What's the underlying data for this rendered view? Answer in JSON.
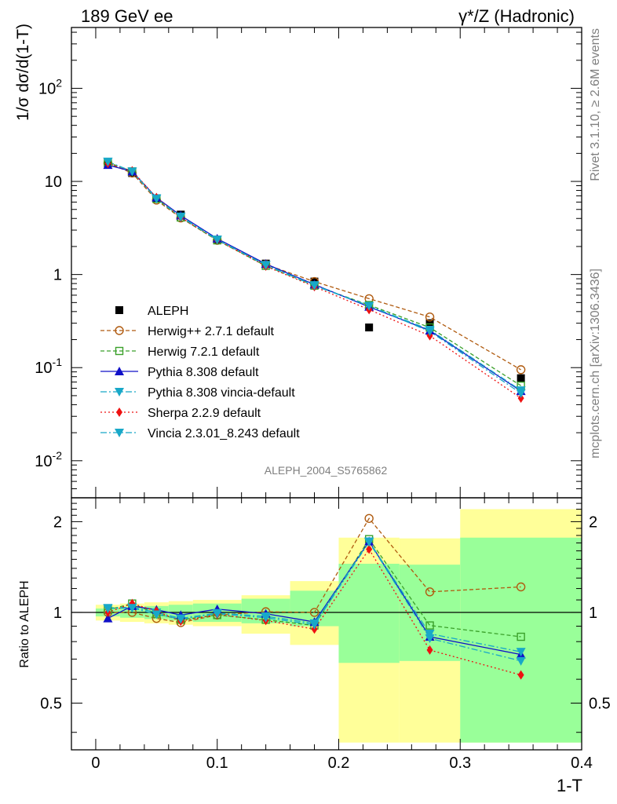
{
  "header": {
    "left_label": "189 GeV ee",
    "right_label": "γ*/Z (Hadronic)"
  },
  "side_labels": {
    "rivet": "Rivet 3.1.10, ≥ 2.6M events",
    "mcplots": "mcplots.cern.ch [arXiv:1306.3436]"
  },
  "analysis_id": "ALEPH_2004_S5765862",
  "chart_data": [
    {
      "type": "line",
      "panel": "main",
      "ylabel": "1/σ dσ/d(1-T)",
      "y_scale": "log",
      "ylim": [
        0.004,
        450
      ],
      "xlim": [
        -0.02,
        0.4
      ],
      "ytick_labels": [
        "10^-2",
        "10^-1",
        "1",
        "10",
        "10^2"
      ],
      "grid": false,
      "legend_position": "middle-left",
      "x": [
        0.01,
        0.03,
        0.05,
        0.07,
        0.1,
        0.14,
        0.18,
        0.225,
        0.275,
        0.35
      ],
      "series": [
        {
          "name": "ALEPH",
          "color": "#000000",
          "marker": "filled-square",
          "line": "none",
          "values": [
            15.7,
            12.3,
            6.6,
            4.4,
            2.38,
            1.31,
            0.84,
            0.27,
            0.3,
            0.077
          ]
        },
        {
          "name": "Herwig++ 2.7.1 default",
          "color": "#b05b10",
          "marker": "open-circle",
          "line": "dashed",
          "values": [
            15.7,
            12.3,
            6.3,
            4.05,
            2.33,
            1.28,
            0.84,
            0.55,
            0.35,
            0.095
          ]
        },
        {
          "name": "Herwig 7.2.1 default",
          "color": "#3aa02a",
          "marker": "open-square",
          "line": "dashed",
          "values": [
            16.0,
            12.8,
            6.5,
            4.1,
            2.33,
            1.24,
            0.76,
            0.47,
            0.27,
            0.064
          ]
        },
        {
          "name": "Pythia 8.308 default",
          "color": "#1010c8",
          "marker": "filled-triangle-up",
          "line": "solid",
          "values": [
            15.0,
            12.8,
            6.7,
            4.3,
            2.43,
            1.3,
            0.78,
            0.45,
            0.25,
            0.056
          ]
        },
        {
          "name": "Pythia 8.308 vincia-default",
          "color": "#18a8c8",
          "marker": "filled-triangle-down",
          "line": "dashdot",
          "values": [
            16.3,
            12.8,
            6.6,
            4.2,
            2.38,
            1.27,
            0.77,
            0.46,
            0.255,
            0.057
          ]
        },
        {
          "name": "Sherpa 2.2.9 default",
          "color": "#ee1111",
          "marker": "filled-diamond",
          "line": "dotted",
          "values": [
            15.6,
            13.0,
            6.7,
            4.1,
            2.35,
            1.23,
            0.74,
            0.42,
            0.22,
            0.047
          ]
        },
        {
          "name": "Vincia 2.3.01_8.243 default",
          "color": "#18a8c8",
          "marker": "filled-triangle-down",
          "line": "dashdot",
          "values": [
            16.3,
            12.8,
            6.5,
            4.15,
            2.36,
            1.26,
            0.76,
            0.46,
            0.245,
            0.053
          ]
        }
      ]
    },
    {
      "type": "line",
      "panel": "ratio",
      "xlabel": "1-T",
      "ylabel": "Ratio to ALEPH",
      "y_scale": "log",
      "ylim": [
        0.35,
        2.4
      ],
      "xlim": [
        -0.02,
        0.4
      ],
      "xtick_labels": [
        "0",
        "0.1",
        "0.2",
        "0.3",
        "0.4"
      ],
      "ytick_labels": [
        "0.5",
        "1",
        "2"
      ],
      "reference_line": 1,
      "bins": [
        [
          0.0,
          0.02
        ],
        [
          0.02,
          0.04
        ],
        [
          0.04,
          0.06
        ],
        [
          0.06,
          0.08
        ],
        [
          0.08,
          0.12
        ],
        [
          0.12,
          0.16
        ],
        [
          0.16,
          0.2
        ],
        [
          0.2,
          0.25
        ],
        [
          0.25,
          0.3
        ],
        [
          0.3,
          0.4
        ]
      ],
      "uncertainty_bands": {
        "inner_color": "#99ff99",
        "outer_color": "#ffff99",
        "inner_low": [
          0.97,
          0.96,
          0.95,
          0.94,
          0.93,
          0.92,
          0.9,
          0.68,
          0.69,
          0.37
        ],
        "inner_high": [
          1.03,
          1.04,
          1.05,
          1.06,
          1.07,
          1.11,
          1.18,
          1.45,
          1.44,
          1.77
        ],
        "outer_low": [
          0.94,
          0.93,
          0.92,
          0.91,
          0.9,
          0.85,
          0.78,
          0.37,
          0.37,
          0.37
        ],
        "outer_high": [
          1.06,
          1.07,
          1.08,
          1.09,
          1.1,
          1.14,
          1.27,
          1.77,
          1.76,
          2.2
        ]
      },
      "x": [
        0.01,
        0.03,
        0.05,
        0.07,
        0.1,
        0.14,
        0.18,
        0.225,
        0.275,
        0.35
      ],
      "series": [
        {
          "name": "Herwig++ 2.7.1 default",
          "color": "#b05b10",
          "marker": "open-circle",
          "line": "dashed",
          "values": [
            1.0,
            1.0,
            0.955,
            0.925,
            0.98,
            1.005,
            1.0,
            2.05,
            1.17,
            1.215
          ]
        },
        {
          "name": "Herwig 7.2.1 default",
          "color": "#3aa02a",
          "marker": "open-square",
          "line": "dashed",
          "values": [
            1.02,
            1.07,
            0.99,
            0.945,
            0.98,
            0.945,
            0.905,
            1.75,
            0.905,
            0.83
          ]
        },
        {
          "name": "Pythia 8.308 default",
          "color": "#1010c8",
          "marker": "filled-triangle-up",
          "line": "solid",
          "values": [
            0.955,
            1.05,
            1.02,
            0.98,
            1.025,
            0.99,
            0.93,
            1.72,
            0.83,
            0.725
          ]
        },
        {
          "name": "Pythia 8.308 vincia-default",
          "color": "#18a8c8",
          "marker": "filled-triangle-down",
          "line": "dashdot",
          "values": [
            1.035,
            1.04,
            1.0,
            0.955,
            0.995,
            0.97,
            0.92,
            1.72,
            0.85,
            0.74
          ]
        },
        {
          "name": "Sherpa 2.2.9 default",
          "color": "#ee1111",
          "marker": "filled-diamond",
          "line": "dotted",
          "values": [
            1.0,
            1.07,
            1.01,
            0.935,
            0.985,
            0.94,
            0.88,
            1.62,
            0.75,
            0.62
          ]
        },
        {
          "name": "Vincia 2.3.01_8.243 default",
          "color": "#18a8c8",
          "marker": "filled-triangle-down",
          "line": "dashdot",
          "values": [
            1.03,
            1.035,
            0.985,
            0.95,
            0.99,
            0.96,
            0.91,
            1.71,
            0.82,
            0.69
          ]
        }
      ]
    }
  ]
}
